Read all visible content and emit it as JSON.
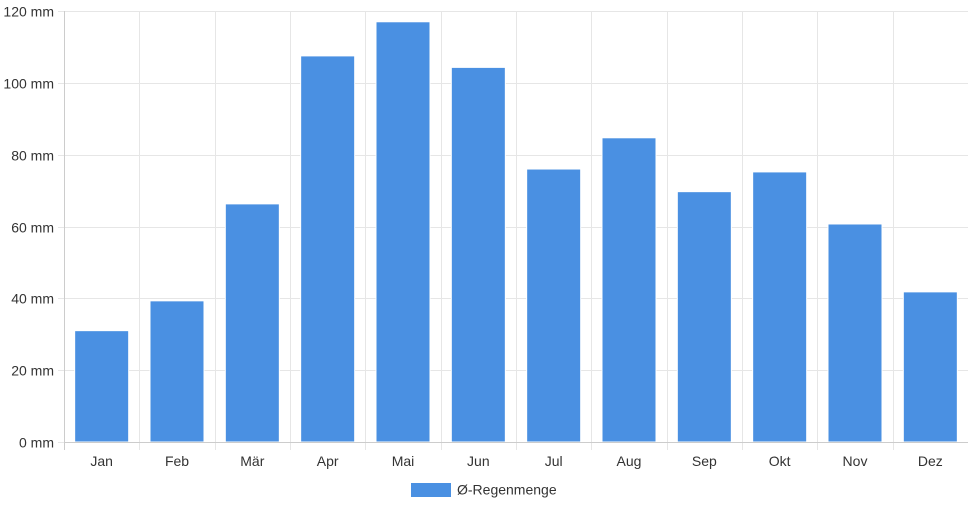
{
  "chart_data": {
    "type": "bar",
    "categories": [
      "Jan",
      "Feb",
      "Mär",
      "Apr",
      "Mai",
      "Jun",
      "Jul",
      "Aug",
      "Sep",
      "Okt",
      "Nov",
      "Dez"
    ],
    "series": [
      {
        "name": "Ø-Regenmenge",
        "values": [
          31,
          39.3,
          66.3,
          107.5,
          117,
          104.3,
          76,
          84.7,
          69.7,
          75.2,
          60.7,
          41.8
        ]
      }
    ],
    "y_ticks": [
      "0 mm",
      "20 mm",
      "40 mm",
      "60 mm",
      "80 mm",
      "100 mm",
      "120 mm"
    ],
    "ylim": [
      0,
      120
    ],
    "grid": true,
    "legend_position": "bottom-center",
    "bar_color": "#4a90e2",
    "grid_color": "#e6e6e6",
    "axis_color": "#cccccc"
  }
}
